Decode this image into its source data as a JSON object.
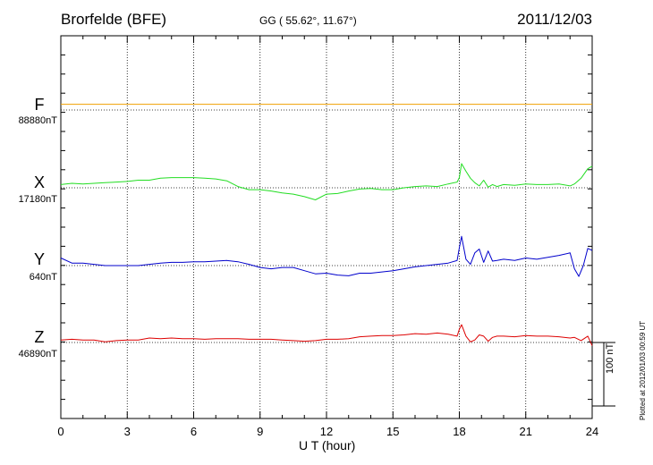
{
  "header": {
    "station": "Brorfelde (BFE)",
    "coords": "GG ( 55.62°,  11.67°)",
    "date": "2011/12/03"
  },
  "footer": {
    "plotted": "Plotted at 2012/01/03 00:59 UT",
    "scale_label": "100 nT"
  },
  "chart_data": {
    "type": "line",
    "xlabel": "U T (hour)",
    "xlim": [
      0,
      24
    ],
    "xticks": [
      "0",
      "3",
      "6",
      "9",
      "12",
      "15",
      "18",
      "21",
      "24"
    ],
    "scale_bar_nT": 100,
    "grid": true,
    "series": [
      {
        "name": "F",
        "baseline_label": "88880nT",
        "color": "#f0a000",
        "baseline_nT": 88880,
        "x": [
          0,
          24
        ],
        "y": [
          9,
          9
        ]
      },
      {
        "name": "X",
        "baseline_label": "17180nT",
        "color": "#22dd22",
        "baseline_nT": 17180,
        "x": [
          0,
          0.5,
          1,
          1.5,
          2,
          2.5,
          3,
          3.5,
          4,
          4.5,
          5,
          5.5,
          6,
          6.5,
          7,
          7.5,
          8,
          8.5,
          9,
          9.5,
          10,
          10.5,
          11,
          11.5,
          12,
          12.5,
          13,
          13.5,
          14,
          14.5,
          15,
          15.5,
          16,
          16.5,
          17,
          17.5,
          17.9,
          18.0,
          18.1,
          18.3,
          18.5,
          18.7,
          18.9,
          19.1,
          19.3,
          19.5,
          19.7,
          20,
          20.5,
          21,
          21.5,
          22,
          22.5,
          23,
          23.2,
          23.5,
          23.8,
          24
        ],
        "y": [
          5,
          7,
          6,
          7,
          8,
          9,
          10,
          12,
          12,
          15,
          16,
          16,
          16,
          15,
          14,
          11,
          2,
          -3,
          -3,
          -5,
          -8,
          -10,
          -14,
          -19,
          -10,
          -9,
          -5,
          -2,
          -1,
          -3,
          -3,
          0,
          2,
          3,
          2,
          6,
          9,
          16,
          38,
          26,
          15,
          8,
          3,
          12,
          1,
          5,
          2,
          5,
          4,
          6,
          5,
          5,
          6,
          3,
          6,
          15,
          30,
          34
        ]
      },
      {
        "name": "Y",
        "baseline_label": "640nT",
        "color": "#0000cc",
        "baseline_nT": 640,
        "x": [
          0,
          0.5,
          1,
          1.5,
          2,
          2.5,
          3,
          3.5,
          4,
          4.5,
          5,
          5.5,
          6,
          6.5,
          7,
          7.5,
          8,
          8.5,
          9,
          9.5,
          10,
          10.5,
          11,
          11.5,
          12,
          12.5,
          13,
          13.5,
          14,
          14.5,
          15,
          15.5,
          16,
          16.5,
          17,
          17.5,
          17.9,
          18.0,
          18.1,
          18.3,
          18.5,
          18.7,
          18.9,
          19.1,
          19.3,
          19.5,
          19.7,
          20,
          20.5,
          21,
          21.5,
          22,
          22.5,
          23,
          23.2,
          23.4,
          23.6,
          23.8,
          24
        ],
        "y": [
          12,
          4,
          4,
          2,
          0,
          0,
          0,
          0,
          2,
          4,
          5,
          5,
          6,
          6,
          7,
          8,
          6,
          2,
          -3,
          -5,
          -3,
          -3,
          -8,
          -13,
          -12,
          -15,
          -16,
          -12,
          -12,
          -10,
          -8,
          -5,
          -2,
          0,
          2,
          4,
          8,
          28,
          46,
          10,
          2,
          20,
          26,
          5,
          23,
          7,
          8,
          10,
          8,
          12,
          10,
          13,
          16,
          20,
          -5,
          -17,
          0,
          27,
          24
        ]
      },
      {
        "name": "Z",
        "baseline_label": "46890nT",
        "color": "#dd0000",
        "baseline_nT": 46890,
        "x": [
          0,
          0.5,
          1,
          1.5,
          2,
          2.5,
          3,
          3.5,
          4,
          4.5,
          5,
          5.5,
          6,
          6.5,
          7,
          7.5,
          8,
          8.5,
          9,
          9.5,
          10,
          10.5,
          11,
          11.5,
          12,
          12.5,
          13,
          13.5,
          14,
          14.5,
          15,
          15.5,
          16,
          16.5,
          17,
          17.5,
          17.9,
          18.0,
          18.1,
          18.3,
          18.5,
          18.7,
          18.9,
          19.1,
          19.3,
          19.5,
          19.7,
          20,
          20.5,
          21,
          21.5,
          22,
          22.5,
          23,
          23.2,
          23.5,
          23.8,
          24
        ],
        "y": [
          4,
          5,
          4,
          4,
          1,
          3,
          4,
          4,
          7,
          6,
          7,
          6,
          6,
          5,
          6,
          6,
          6,
          5,
          5,
          5,
          4,
          3,
          2,
          3,
          5,
          5,
          6,
          9,
          10,
          11,
          11,
          12,
          14,
          13,
          15,
          13,
          10,
          21,
          28,
          10,
          1,
          4,
          12,
          10,
          2,
          8,
          10,
          10,
          9,
          11,
          10,
          10,
          9,
          7,
          8,
          3,
          10,
          -5
        ]
      }
    ]
  }
}
